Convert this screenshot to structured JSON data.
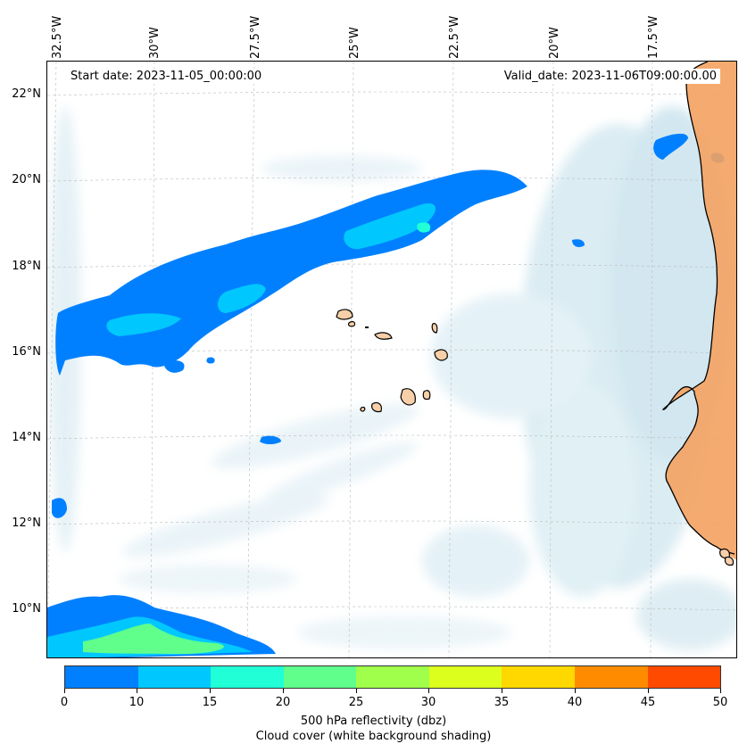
{
  "map": {
    "start_date": "Start date: 2023-11-05_00:00:00",
    "valid_date": "Valid_date: 2023-11-06T09:00:00.00",
    "lon_labels": [
      "32.5°W",
      "30°W",
      "27.5°W",
      "25°W",
      "22.5°W",
      "20°W",
      "17.5°W"
    ],
    "lat_labels": [
      "22°N",
      "20°N",
      "18°N",
      "16°N",
      "14°N",
      "12°N",
      "10°N"
    ],
    "colors": {
      "land": "#f4a261",
      "cloud": "#d5e9f1",
      "gridline": "#bbbbbb",
      "coast": "#000000"
    }
  },
  "colorbar": {
    "ticks": [
      "0",
      "10",
      "15",
      "20",
      "25",
      "30",
      "35",
      "40",
      "45",
      "50"
    ],
    "colors": [
      "#0080ff",
      "#00c8ff",
      "#20ffd6",
      "#60ff8c",
      "#a0ff4a",
      "#dcff1e",
      "#ffd800",
      "#ff8c00",
      "#ff4a00"
    ],
    "title": "500 hPa reflectivity (dbz)",
    "subtitle": "Cloud cover (white background shading)"
  }
}
